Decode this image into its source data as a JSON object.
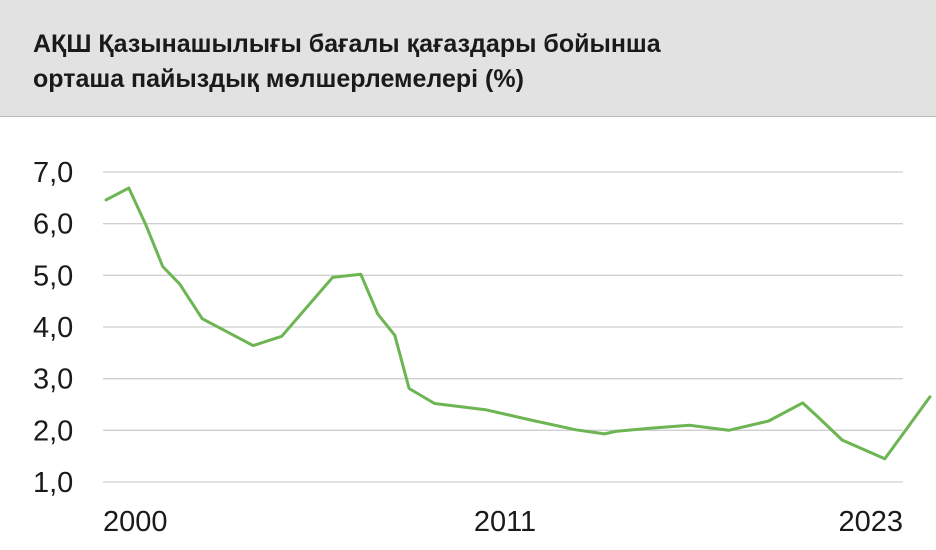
{
  "chart_data": {
    "type": "line",
    "title": "АҚШ Қазынашылығы бағалы қағаздары бойынша орташа пайыздық мөлшерлемелері (%)",
    "title_lines": [
      "АҚШ Қазынашылығы бағалы қағаздары бойынша",
      "орташа пайыздық мөлшерлемелері (%)"
    ],
    "xlabel": "",
    "ylabel": "",
    "x_ticks": [
      "2000",
      "2011",
      "2023"
    ],
    "y_ticks": [
      "7,0",
      "6,0",
      "5,0",
      "4,0",
      "3,0",
      "2,0",
      "1,0"
    ],
    "ylim": [
      1.0,
      7.0
    ],
    "xlim": [
      2000,
      2023
    ],
    "grid": "horizontal",
    "line_color": "#6cb552",
    "series": [
      {
        "name": "",
        "x": [
          2000,
          2000.67,
          2001.17,
          2001.67,
          2002.17,
          2002.83,
          2004.33,
          2005.17,
          2006.67,
          2007.5,
          2008.0,
          2008.5,
          2008.92,
          2009.67,
          2011.17,
          2012.5,
          2013.83,
          2014.67,
          2015.0,
          2016.0,
          2017.17,
          2018.33,
          2019.5,
          2020.5,
          2020.92,
          2021.67,
          2022.92,
          2024.25
        ],
        "values": [
          6.46,
          6.69,
          5.98,
          5.17,
          4.83,
          4.16,
          3.64,
          3.82,
          4.96,
          5.02,
          4.25,
          3.84,
          2.81,
          2.52,
          2.4,
          2.2,
          2.01,
          1.93,
          1.98,
          2.04,
          2.1,
          2.0,
          2.18,
          2.53,
          2.28,
          1.81,
          1.45,
          2.65
        ]
      }
    ]
  }
}
